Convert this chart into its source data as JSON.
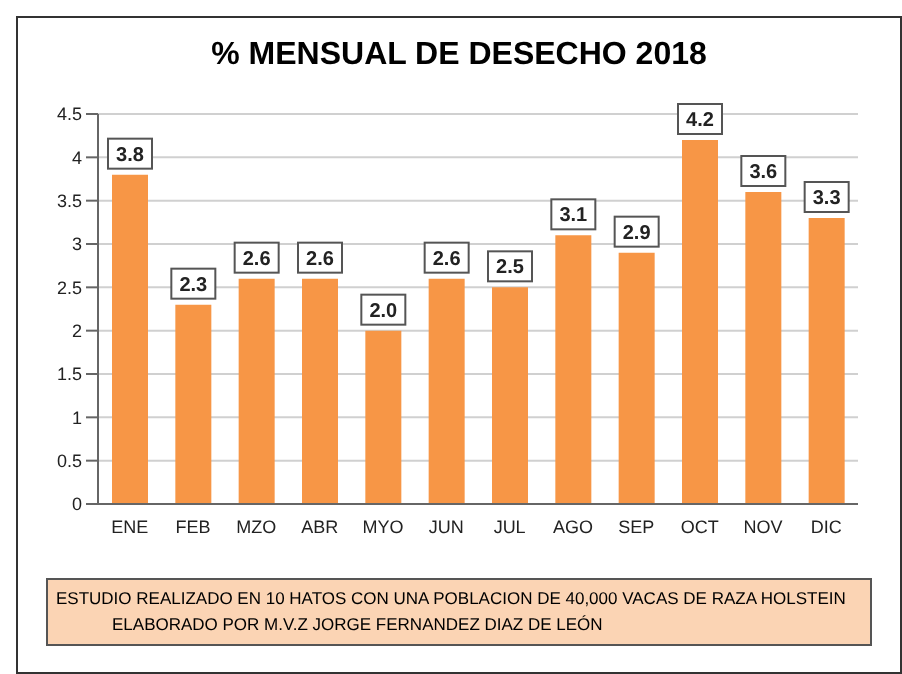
{
  "chart_data": {
    "type": "bar",
    "title": "% MENSUAL DE DESECHO 2018",
    "categories": [
      "ENE",
      "FEB",
      "MZO",
      "ABR",
      "MYO",
      "JUN",
      "JUL",
      "AGO",
      "SEP",
      "OCT",
      "NOV",
      "DIC"
    ],
    "values": [
      3.8,
      2.3,
      2.6,
      2.6,
      2.0,
      2.6,
      2.5,
      3.1,
      2.9,
      4.2,
      3.6,
      3.3
    ],
    "value_labels": [
      "3.8",
      "2.3",
      "2.6",
      "2.6",
      "2.0",
      "2.6",
      "2.5",
      "3.1",
      "2.9",
      "4.2",
      "3.6",
      "3.3"
    ],
    "color": "#f79646",
    "ylim": [
      0,
      4.5
    ],
    "yticks": [
      0,
      0.5,
      1,
      1.5,
      2,
      2.5,
      3,
      3.5,
      4,
      4.5
    ],
    "grid": "y",
    "annotations": [
      "ESTUDIO REALIZADO EN 10 HATOS CON UNA POBLACION DE 40,000 VACAS DE RAZA HOLSTEIN",
      "ELABORADO POR M.V.Z JORGE FERNANDEZ DIAZ DE LEÓN"
    ]
  }
}
